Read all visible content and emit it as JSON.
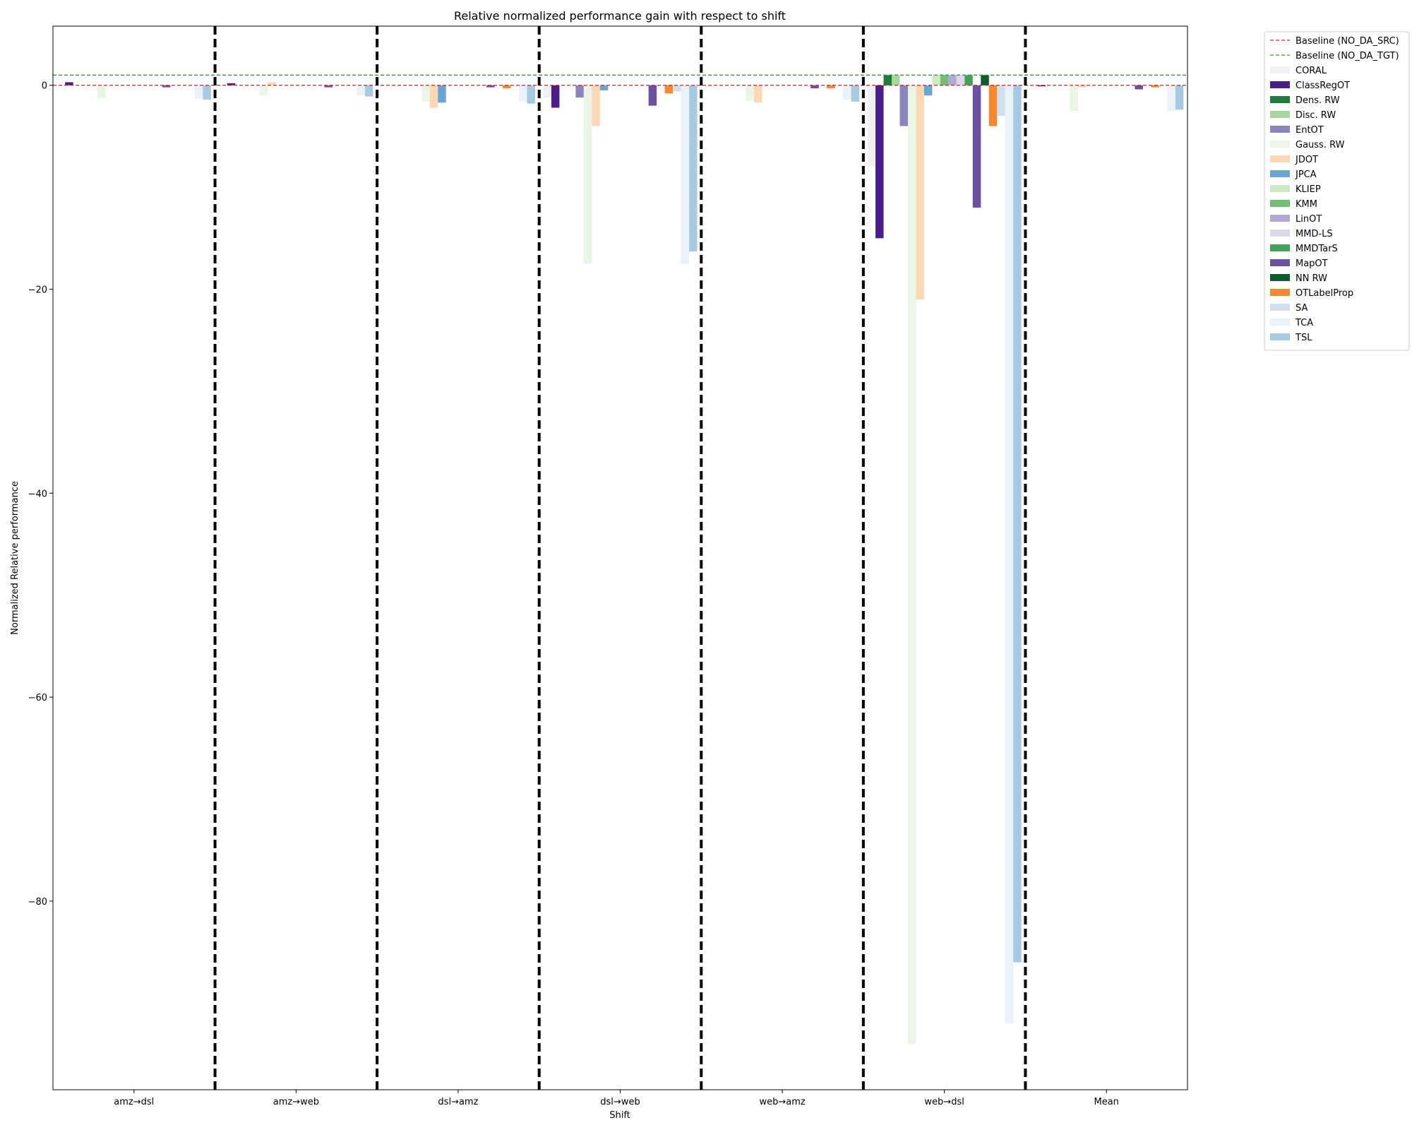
{
  "chart_data": {
    "type": "bar",
    "title": "Relative normalized performance gain with respect to shift",
    "xlabel": "Shift",
    "ylabel": "Normalized Relative performance",
    "categories": [
      "amz→dsl",
      "amz→web",
      "dsl→amz",
      "dsl→web",
      "web→amz",
      "web→dsl",
      "Mean"
    ],
    "ylim": [
      -98.5,
      5.8
    ],
    "yticks": [
      0,
      -20,
      -40,
      -60,
      -80
    ],
    "ytick_labels": [
      "0",
      "−20",
      "−40",
      "−60",
      "−80"
    ],
    "grid": false,
    "legend_position": "outside-top-right",
    "baselines": [
      {
        "name": "Baseline (NO_DA_SRC)",
        "value": 0,
        "color": "#e41a1c"
      },
      {
        "name": "Baseline (NO_DA_TGT)",
        "value": 1.0,
        "color": "#2ca02c"
      }
    ],
    "series": [
      {
        "name": "CORAL",
        "color": "#f0f0f5",
        "values": [
          0,
          0,
          0,
          -1.2,
          -0.2,
          -8.0,
          -0.1
        ]
      },
      {
        "name": "ClassRegOT",
        "color": "#4b1d8b",
        "values": [
          0.3,
          0.2,
          0,
          -2.2,
          0,
          -15.0,
          -0.1
        ]
      },
      {
        "name": "Dens. RW",
        "color": "#1e7b3c",
        "values": [
          0,
          0,
          0,
          0,
          0,
          1.0,
          0
        ]
      },
      {
        "name": "Disc. RW",
        "color": "#a6d69c",
        "values": [
          0,
          0,
          0,
          0,
          0,
          1.0,
          0
        ]
      },
      {
        "name": "EntOT",
        "color": "#8a84bf",
        "values": [
          0,
          0,
          0,
          -1.2,
          0,
          -4.0,
          0
        ]
      },
      {
        "name": "Gauss. RW",
        "color": "#eaf5e6",
        "values": [
          -1.3,
          -1.0,
          -1.6,
          -17.5,
          -1.5,
          -94.0,
          -2.5
        ]
      },
      {
        "name": "JDOT",
        "color": "#fcd7b3",
        "values": [
          0,
          0.3,
          -2.2,
          -4.0,
          -1.7,
          -21.0,
          -0.2
        ]
      },
      {
        "name": "JPCA",
        "color": "#6aa6d4",
        "values": [
          0,
          0,
          -1.7,
          -0.5,
          0,
          -1.0,
          0
        ]
      },
      {
        "name": "KLIEP",
        "color": "#cce9c4",
        "values": [
          0,
          0,
          0,
          0,
          0,
          1.0,
          0
        ]
      },
      {
        "name": "KMM",
        "color": "#72bf74",
        "values": [
          0,
          0,
          0,
          0,
          0,
          1.0,
          0
        ]
      },
      {
        "name": "LinOT",
        "color": "#b2aad3",
        "values": [
          0,
          0,
          0,
          0,
          0,
          1.0,
          0
        ]
      },
      {
        "name": "MMD-LS",
        "color": "#dcd8ea",
        "values": [
          0,
          0,
          0,
          0,
          0,
          1.0,
          0
        ]
      },
      {
        "name": "MMDTarS",
        "color": "#41a25a",
        "values": [
          0,
          0,
          0,
          0,
          0,
          1.0,
          0
        ]
      },
      {
        "name": "MapOT",
        "color": "#6b51a3",
        "values": [
          -0.2,
          -0.2,
          -0.2,
          -2.0,
          -0.3,
          -12.0,
          -0.4
        ]
      },
      {
        "name": "NN RW",
        "color": "#0f5a2a",
        "values": [
          0,
          0,
          0,
          0,
          0,
          1.0,
          0
        ]
      },
      {
        "name": "OTLabelProp",
        "color": "#f7882f",
        "values": [
          0,
          0,
          -0.3,
          -0.8,
          -0.3,
          -4.0,
          -0.2
        ]
      },
      {
        "name": "SA",
        "color": "#cfdfee",
        "values": [
          0,
          0,
          0,
          -0.6,
          0,
          -3.0,
          0
        ]
      },
      {
        "name": "TCA",
        "color": "#e9f1f9",
        "values": [
          -1.3,
          -1.0,
          -1.6,
          -17.5,
          -1.4,
          -92.0,
          -2.5
        ]
      },
      {
        "name": "TSL",
        "color": "#a5cae2",
        "values": [
          -1.4,
          -1.1,
          -1.8,
          -16.3,
          -1.6,
          -86.0,
          -2.4
        ]
      }
    ]
  }
}
